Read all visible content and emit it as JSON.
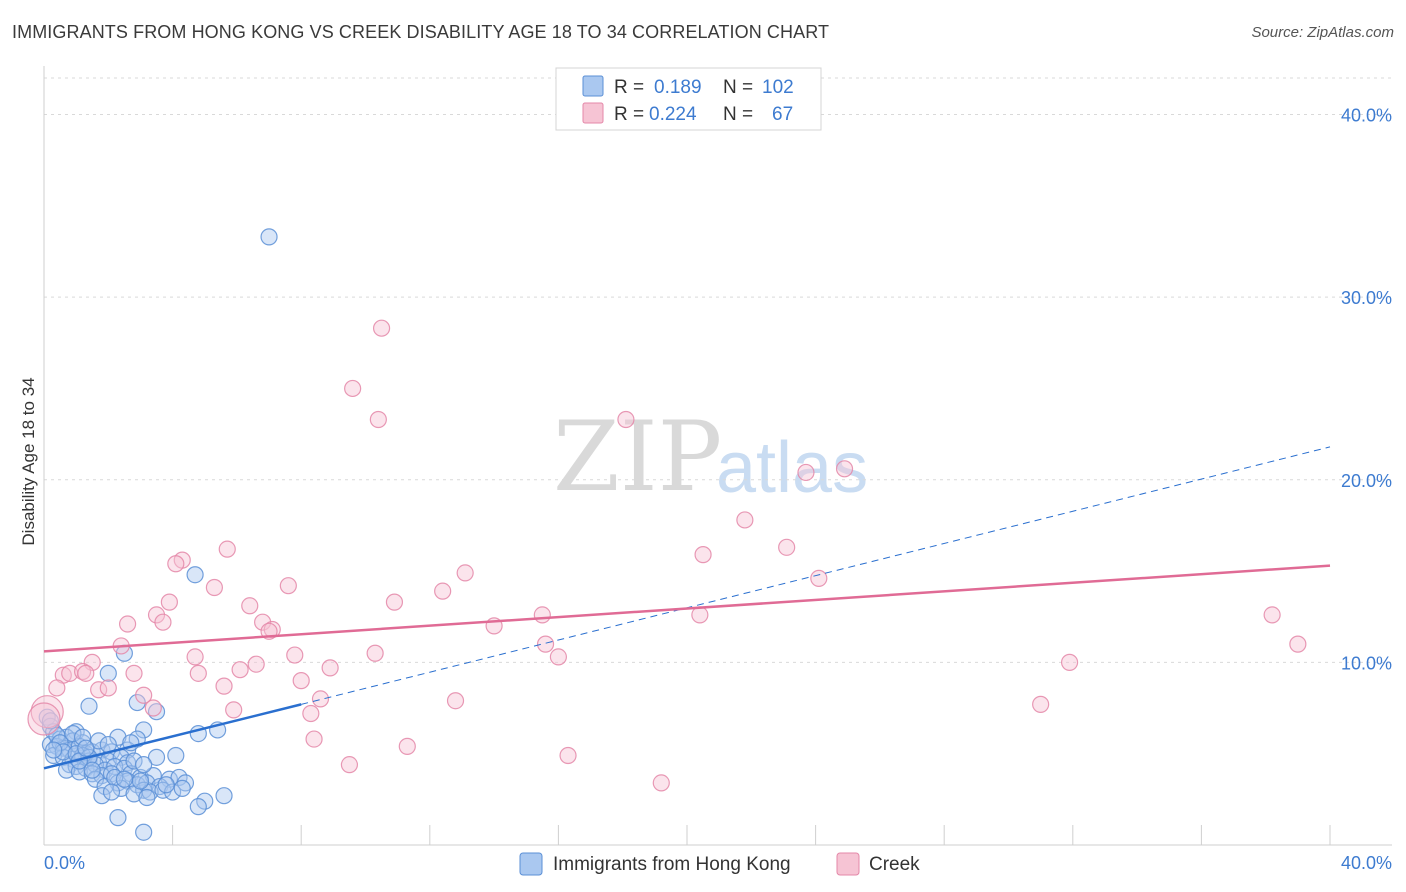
{
  "title": "IMMIGRANTS FROM HONG KONG VS CREEK DISABILITY AGE 18 TO 34 CORRELATION CHART",
  "source": "Source: ZipAtlas.com",
  "watermark": {
    "zip": "ZIP",
    "atlas": "atlas"
  },
  "legend": {
    "rows": [
      {
        "r_label": "R =",
        "r_value": "0.189",
        "n_label": "N =",
        "n_value": "102"
      },
      {
        "r_label": "R =",
        "r_value": "0.224",
        "n_label": "N =",
        "n_value": "67"
      }
    ]
  },
  "colors": {
    "blue_fill": "#aac8f0",
    "blue_stroke": "#5b8fd6",
    "blue_line": "#2a6fcf",
    "pink_fill": "#f6c4d4",
    "pink_stroke": "#e487a8",
    "pink_line": "#e06b95",
    "tick_text": "#3d7bd0",
    "grid": "#d9d9d9"
  },
  "chart_data": {
    "type": "scatter",
    "title": "IMMIGRANTS FROM HONG KONG VS CREEK DISABILITY AGE 18 TO 34 CORRELATION CHART",
    "xlabel": "",
    "ylabel": "Disability Age 18 to 34",
    "xlim": [
      0,
      40
    ],
    "ylim": [
      0,
      42
    ],
    "x_tick_labels": [
      "0.0%",
      "40.0%"
    ],
    "y_ticks": [
      10,
      20,
      30,
      40
    ],
    "y_tick_labels": [
      "10.0%",
      "20.0%",
      "30.0%",
      "40.0%"
    ],
    "grid": true,
    "legend_position": "top-center",
    "series": [
      {
        "name": "Immigrants from Hong Kong",
        "r": 0.189,
        "n": 102,
        "trend": {
          "x": [
            0,
            8
          ],
          "y": [
            4.2,
            7.7
          ]
        },
        "trend_extended": {
          "x": [
            8,
            40
          ],
          "y": [
            7.7,
            21.8
          ]
        },
        "points": [
          [
            7.0,
            33.3
          ],
          [
            4.7,
            14.8
          ],
          [
            2.5,
            10.5
          ],
          [
            2.0,
            9.4
          ],
          [
            2.9,
            7.8
          ],
          [
            1.4,
            7.6
          ],
          [
            3.5,
            7.3
          ],
          [
            0.1,
            7.0
          ],
          [
            0.2,
            6.5
          ],
          [
            0.3,
            6.2
          ],
          [
            1.0,
            6.2
          ],
          [
            3.1,
            6.3
          ],
          [
            4.8,
            6.1
          ],
          [
            5.4,
            6.3
          ],
          [
            0.5,
            5.8
          ],
          [
            0.7,
            5.9
          ],
          [
            0.9,
            5.7
          ],
          [
            1.2,
            5.6
          ],
          [
            2.3,
            5.9
          ],
          [
            2.9,
            5.8
          ],
          [
            0.2,
            5.5
          ],
          [
            0.4,
            5.4
          ],
          [
            0.6,
            5.3
          ],
          [
            0.8,
            5.2
          ],
          [
            1.1,
            5.4
          ],
          [
            1.3,
            5.0
          ],
          [
            1.5,
            5.1
          ],
          [
            1.8,
            5.2
          ],
          [
            2.1,
            5.1
          ],
          [
            2.6,
            5.2
          ],
          [
            3.5,
            4.8
          ],
          [
            4.1,
            4.9
          ],
          [
            0.3,
            4.9
          ],
          [
            0.6,
            4.8
          ],
          [
            0.9,
            4.7
          ],
          [
            1.2,
            4.9
          ],
          [
            1.4,
            4.6
          ],
          [
            1.7,
            4.5
          ],
          [
            2.0,
            4.6
          ],
          [
            2.4,
            4.8
          ],
          [
            2.6,
            4.5
          ],
          [
            0.8,
            4.4
          ],
          [
            1.0,
            4.3
          ],
          [
            1.3,
            4.2
          ],
          [
            1.6,
            4.4
          ],
          [
            1.9,
            4.1
          ],
          [
            2.2,
            4.3
          ],
          [
            2.5,
            4.2
          ],
          [
            0.7,
            4.1
          ],
          [
            1.1,
            4.0
          ],
          [
            1.5,
            3.9
          ],
          [
            1.8,
            3.8
          ],
          [
            2.1,
            3.9
          ],
          [
            2.7,
            3.9
          ],
          [
            3.0,
            3.7
          ],
          [
            3.4,
            3.8
          ],
          [
            3.9,
            3.6
          ],
          [
            4.2,
            3.7
          ],
          [
            1.6,
            3.6
          ],
          [
            2.3,
            3.4
          ],
          [
            2.6,
            3.5
          ],
          [
            2.9,
            3.3
          ],
          [
            3.2,
            3.4
          ],
          [
            3.6,
            3.2
          ],
          [
            4.4,
            3.4
          ],
          [
            1.9,
            3.2
          ],
          [
            2.4,
            3.1
          ],
          [
            3.1,
            3.0
          ],
          [
            3.3,
            2.9
          ],
          [
            3.7,
            3.0
          ],
          [
            4.0,
            2.9
          ],
          [
            1.8,
            2.7
          ],
          [
            2.8,
            2.8
          ],
          [
            3.2,
            2.6
          ],
          [
            5.0,
            2.4
          ],
          [
            5.6,
            2.7
          ],
          [
            4.8,
            2.1
          ],
          [
            2.3,
            1.5
          ],
          [
            3.1,
            0.7
          ],
          [
            0.4,
            6.0
          ],
          [
            0.5,
            5.6
          ],
          [
            0.9,
            6.1
          ],
          [
            1.2,
            5.9
          ],
          [
            1.7,
            5.7
          ],
          [
            2.0,
            5.5
          ],
          [
            2.7,
            5.6
          ],
          [
            0.6,
            5.1
          ],
          [
            1.0,
            5.0
          ],
          [
            1.4,
            4.8
          ],
          [
            2.8,
            4.6
          ],
          [
            3.1,
            4.4
          ],
          [
            0.3,
            5.2
          ],
          [
            1.1,
            4.6
          ],
          [
            1.5,
            4.1
          ],
          [
            2.2,
            3.7
          ],
          [
            2.5,
            3.6
          ],
          [
            3.0,
            3.5
          ],
          [
            3.8,
            3.3
          ],
          [
            2.1,
            2.9
          ],
          [
            4.3,
            3.1
          ],
          [
            1.3,
            5.3
          ],
          [
            0.2,
            6.8
          ]
        ]
      },
      {
        "name": "Creek",
        "r": 0.224,
        "n": 67,
        "trend": {
          "x": [
            0,
            40
          ],
          "y": [
            10.6,
            15.3
          ]
        },
        "points": [
          [
            0.1,
            7.3
          ],
          [
            10.5,
            28.3
          ],
          [
            9.6,
            25.0
          ],
          [
            10.4,
            23.3
          ],
          [
            18.1,
            23.3
          ],
          [
            23.7,
            20.4
          ],
          [
            24.9,
            20.6
          ],
          [
            21.8,
            17.8
          ],
          [
            5.7,
            16.2
          ],
          [
            4.3,
            15.6
          ],
          [
            4.1,
            15.4
          ],
          [
            20.5,
            15.9
          ],
          [
            23.1,
            16.3
          ],
          [
            13.1,
            14.9
          ],
          [
            7.6,
            14.2
          ],
          [
            5.3,
            14.1
          ],
          [
            12.4,
            13.9
          ],
          [
            3.9,
            13.3
          ],
          [
            10.9,
            13.3
          ],
          [
            6.4,
            13.1
          ],
          [
            24.1,
            14.6
          ],
          [
            3.5,
            12.6
          ],
          [
            15.5,
            12.6
          ],
          [
            20.4,
            12.6
          ],
          [
            38.2,
            12.6
          ],
          [
            3.7,
            12.2
          ],
          [
            2.6,
            12.1
          ],
          [
            6.8,
            12.2
          ],
          [
            7.1,
            11.8
          ],
          [
            7.0,
            11.7
          ],
          [
            14.0,
            12.0
          ],
          [
            2.4,
            10.9
          ],
          [
            15.6,
            11.0
          ],
          [
            39.0,
            11.0
          ],
          [
            7.8,
            10.4
          ],
          [
            10.3,
            10.5
          ],
          [
            16.0,
            10.3
          ],
          [
            4.7,
            10.3
          ],
          [
            1.5,
            10.0
          ],
          [
            31.9,
            10.0
          ],
          [
            0.6,
            9.3
          ],
          [
            0.8,
            9.4
          ],
          [
            1.2,
            9.5
          ],
          [
            1.3,
            9.4
          ],
          [
            2.8,
            9.4
          ],
          [
            4.8,
            9.4
          ],
          [
            6.1,
            9.6
          ],
          [
            6.6,
            9.9
          ],
          [
            8.9,
            9.7
          ],
          [
            8.0,
            9.0
          ],
          [
            0.4,
            8.6
          ],
          [
            1.7,
            8.5
          ],
          [
            2.0,
            8.6
          ],
          [
            5.6,
            8.7
          ],
          [
            3.1,
            8.2
          ],
          [
            8.6,
            8.0
          ],
          [
            12.8,
            7.9
          ],
          [
            31.0,
            7.7
          ],
          [
            3.4,
            7.5
          ],
          [
            5.9,
            7.4
          ],
          [
            8.3,
            7.2
          ],
          [
            8.4,
            5.8
          ],
          [
            11.3,
            5.4
          ],
          [
            9.5,
            4.4
          ],
          [
            16.3,
            4.9
          ],
          [
            19.2,
            3.4
          ],
          [
            0.0,
            6.9
          ]
        ]
      }
    ]
  },
  "bottom_legend": {
    "items": [
      {
        "label": "Immigrants from Hong Kong"
      },
      {
        "label": "Creek"
      }
    ]
  }
}
